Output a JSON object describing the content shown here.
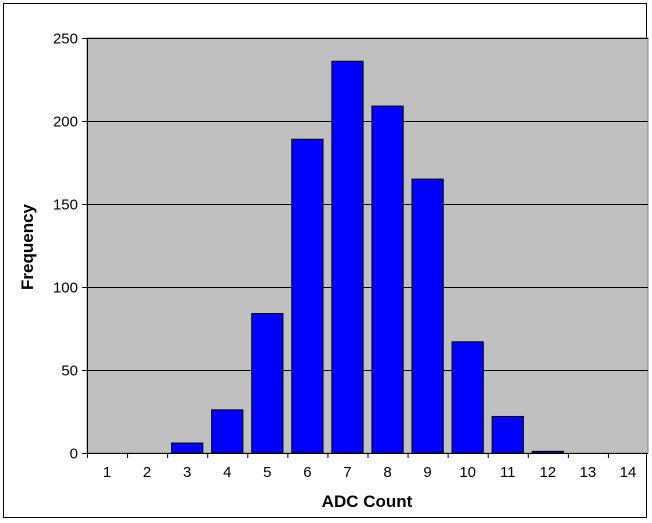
{
  "chart_data": {
    "type": "bar",
    "categories": [
      "1",
      "2",
      "3",
      "4",
      "5",
      "6",
      "7",
      "8",
      "9",
      "10",
      "11",
      "12",
      "13",
      "14"
    ],
    "values": [
      0,
      0,
      6,
      26,
      84,
      189,
      236,
      209,
      165,
      67,
      22,
      1,
      0,
      0
    ],
    "xlabel": "ADC Count",
    "ylabel": "Frequency",
    "ylim": [
      0,
      250
    ],
    "yticks": [
      0,
      50,
      100,
      150,
      200,
      250
    ],
    "grid": true,
    "legend": "none",
    "colors": {
      "bar_fill": "#0000ff",
      "bar_stroke": "#000000",
      "plot_background": "#c0c0c0",
      "gridline": "#000000"
    }
  }
}
